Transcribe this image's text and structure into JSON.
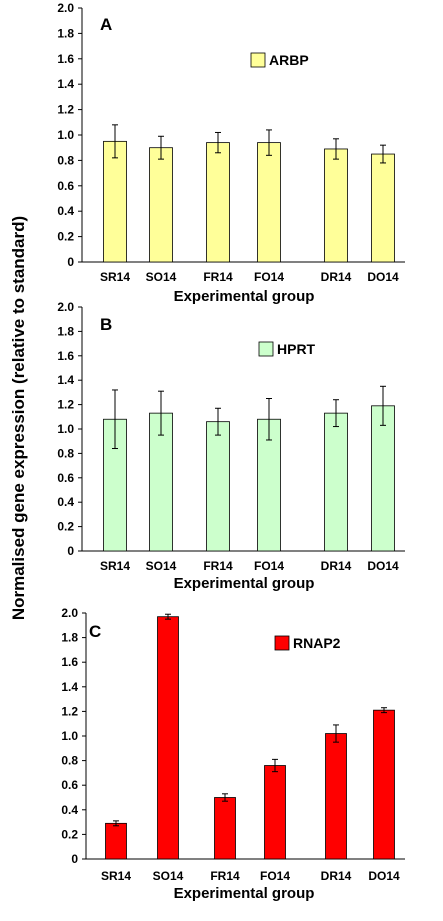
{
  "ylabel": "Normalised gene expression (relative to standard)",
  "chart_data": [
    {
      "type": "bar",
      "panel": "A",
      "legend": "ARBP",
      "color": "#ffff99",
      "xlabel": "Experimental group",
      "categories": [
        "SR14",
        "SO14",
        "FR14",
        "FO14",
        "DR14",
        "DO14"
      ],
      "values": [
        0.95,
        0.9,
        0.94,
        0.94,
        0.89,
        0.85
      ],
      "errors": [
        0.13,
        0.09,
        0.08,
        0.1,
        0.08,
        0.07
      ],
      "ylim": [
        0,
        2.0
      ],
      "yticks": [
        "0",
        "0.2",
        "0.4",
        "0.6",
        "0.8",
        "1.0",
        "1.2",
        "1.4",
        "1.6",
        "1.8",
        "2.0"
      ],
      "grid": false,
      "legend_position": "top-center"
    },
    {
      "type": "bar",
      "panel": "B",
      "legend": "HPRT",
      "color": "#ccffcc",
      "xlabel": "Experimental group",
      "categories": [
        "SR14",
        "SO14",
        "FR14",
        "FO14",
        "DR14",
        "DO14"
      ],
      "values": [
        1.08,
        1.13,
        1.06,
        1.08,
        1.13,
        1.19
      ],
      "errors": [
        0.24,
        0.18,
        0.11,
        0.17,
        0.11,
        0.16
      ],
      "ylim": [
        0,
        2.0
      ],
      "yticks": [
        "0",
        "0.2",
        "0.4",
        "0.6",
        "0.8",
        "1.0",
        "1.2",
        "1.4",
        "1.6",
        "1.8",
        "2.0"
      ],
      "grid": false,
      "legend_position": "top-center"
    },
    {
      "type": "bar",
      "panel": "C",
      "legend": "RNAP2",
      "color": "#ff0000",
      "xlabel": "Experimental group",
      "categories": [
        "SR14",
        "SO14",
        "FR14",
        "FO14",
        "DR14",
        "DO14"
      ],
      "values": [
        0.29,
        1.97,
        0.5,
        0.76,
        1.02,
        1.21
      ],
      "errors": [
        0.02,
        0.02,
        0.03,
        0.05,
        0.07,
        0.02
      ],
      "ylim": [
        0,
        2.0
      ],
      "yticks": [
        "0",
        "0.2",
        "0.4",
        "0.6",
        "0.8",
        "1.0",
        "1.2",
        "1.4",
        "1.6",
        "1.8",
        "2.0"
      ],
      "grid": false,
      "legend_position": "top-center"
    }
  ]
}
